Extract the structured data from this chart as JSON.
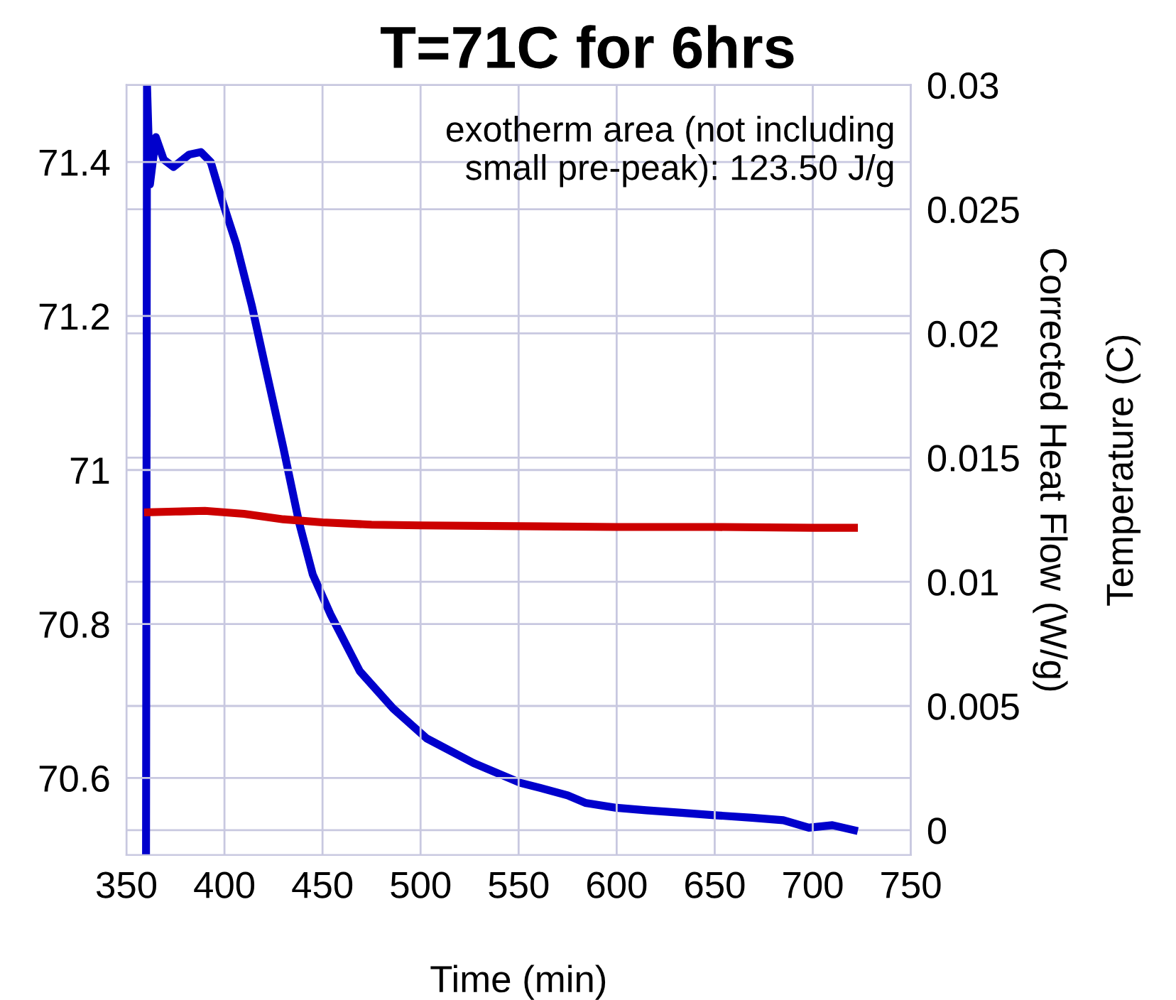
{
  "chart_data": {
    "type": "line",
    "title": "T=71C for 6hrs",
    "xlabel": "Time (min)",
    "y2label": "Corrected Heat Flow (W/g)",
    "annotations": [
      "exotherm area (not including\nsmall pre-peak): 123.50 J/g",
      "Temperature (C)"
    ],
    "xlim": [
      350,
      750
    ],
    "xticks": [
      350,
      400,
      450,
      500,
      550,
      600,
      650,
      700,
      750
    ],
    "ylim": [
      70.5,
      71.5
    ],
    "yticks": [
      70.6,
      70.8,
      71,
      71.2,
      71.4
    ],
    "y2lim": [
      -0.001,
      0.03
    ],
    "y2ticks": [
      0,
      0.005,
      0.01,
      0.015,
      0.02,
      0.025,
      0.03
    ],
    "grid": true,
    "line_style": "solid",
    "marker": "none",
    "series": [
      {
        "color": "#cc0000",
        "x": [
          361,
          375,
          390,
          410,
          430,
          450,
          475,
          500,
          550,
          600,
          650,
          700,
          721
        ],
        "values": [
          70.945,
          70.946,
          70.947,
          70.943,
          70.936,
          70.932,
          70.929,
          70.928,
          70.927,
          70.926,
          70.926,
          70.925,
          70.925
        ]
      },
      {
        "color": "#0000cc",
        "axis": "y2",
        "x": [
          360,
          360.5,
          362,
          365,
          369,
          374,
          382,
          388,
          393,
          399,
          406,
          414,
          421,
          430,
          438,
          445,
          454,
          469,
          486,
          503,
          527,
          551,
          561,
          575,
          584,
          600,
          615,
          633,
          650,
          669,
          685,
          698,
          710,
          721
        ],
        "values": [
          -0.001,
          0.03,
          0.026,
          0.0279,
          0.027,
          0.0267,
          0.0272,
          0.0273,
          0.0269,
          0.0253,
          0.0236,
          0.0211,
          0.0186,
          0.0154,
          0.0124,
          0.0103,
          0.0087,
          0.0064,
          0.0049,
          0.0037,
          0.0027,
          0.0019,
          0.0017,
          0.0014,
          0.0011,
          0.0009,
          0.0008,
          0.0007,
          0.0006,
          0.0005,
          0.0004,
          0.0001,
          0.0002,
          0.0
        ]
      }
    ]
  }
}
